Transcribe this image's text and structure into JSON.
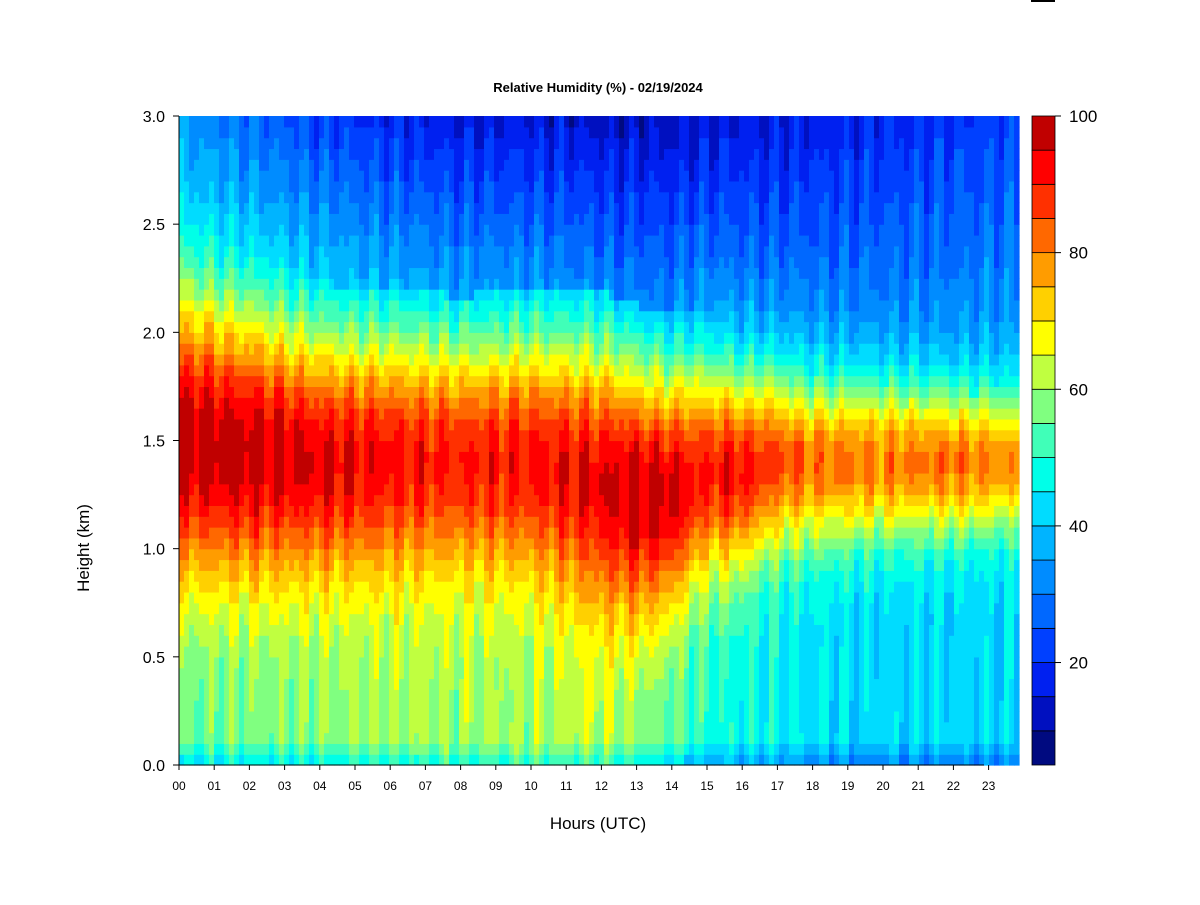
{
  "chart_data": {
    "type": "heatmap",
    "title": "Relative Humidity (%) - 02/19/2024",
    "xlabel": "Hours (UTC)",
    "ylabel": "Height (km)",
    "x_ticks": [
      "00",
      "01",
      "02",
      "03",
      "04",
      "05",
      "06",
      "07",
      "08",
      "09",
      "10",
      "11",
      "12",
      "13",
      "14",
      "15",
      "16",
      "17",
      "18",
      "19",
      "20",
      "21",
      "22",
      "23"
    ],
    "y_ticks": [
      "0.0",
      "0.5",
      "1.0",
      "1.5",
      "2.0",
      "2.5",
      "3.0"
    ],
    "xlim": [
      0,
      24
    ],
    "ylim": [
      0,
      3
    ],
    "colorbar": {
      "range": [
        5,
        100
      ],
      "ticks": [
        "20",
        "40",
        "60",
        "80",
        "100"
      ],
      "levels": [
        5,
        10,
        15,
        20,
        25,
        30,
        35,
        40,
        45,
        50,
        55,
        60,
        65,
        70,
        75,
        80,
        85,
        90,
        95,
        100
      ],
      "colors": [
        "#000a80",
        "#0010c0",
        "#0020f0",
        "#0040ff",
        "#0068ff",
        "#008cff",
        "#00b4ff",
        "#00dcff",
        "#00ffe8",
        "#40ffb8",
        "#80ff80",
        "#c0ff40",
        "#ffff00",
        "#ffd000",
        "#ff9c00",
        "#ff6800",
        "#ff3000",
        "#ff0000",
        "#c00000",
        "#800000"
      ]
    },
    "profiles": [
      {
        "hour": 0,
        "peak_height": 1.5,
        "peak_rh": 99,
        "half_width": 0.62,
        "surface_rh": 42,
        "top_rh": 34
      },
      {
        "hour": 2,
        "peak_height": 1.45,
        "peak_rh": 98,
        "half_width": 0.58,
        "surface_rh": 44,
        "top_rh": 28
      },
      {
        "hour": 4,
        "peak_height": 1.4,
        "peak_rh": 95,
        "half_width": 0.52,
        "surface_rh": 46,
        "top_rh": 22
      },
      {
        "hour": 6,
        "peak_height": 1.4,
        "peak_rh": 92,
        "half_width": 0.5,
        "surface_rh": 48,
        "top_rh": 18
      },
      {
        "hour": 8,
        "peak_height": 1.4,
        "peak_rh": 90,
        "half_width": 0.48,
        "surface_rh": 48,
        "top_rh": 15
      },
      {
        "hour": 10,
        "peak_height": 1.4,
        "peak_rh": 91,
        "half_width": 0.5,
        "surface_rh": 48,
        "top_rh": 15
      },
      {
        "hour": 12,
        "peak_height": 1.3,
        "peak_rh": 94,
        "half_width": 0.56,
        "surface_rh": 50,
        "top_rh": 13
      },
      {
        "hour": 13,
        "peak_height": 1.25,
        "peak_rh": 98,
        "half_width": 0.55,
        "surface_rh": 46,
        "top_rh": 12
      },
      {
        "hour": 14,
        "peak_height": 1.25,
        "peak_rh": 97,
        "half_width": 0.52,
        "surface_rh": 42,
        "top_rh": 12
      },
      {
        "hour": 15,
        "peak_height": 1.35,
        "peak_rh": 90,
        "half_width": 0.46,
        "surface_rh": 38,
        "top_rh": 14
      },
      {
        "hour": 16,
        "peak_height": 1.35,
        "peak_rh": 92,
        "half_width": 0.42,
        "surface_rh": 36,
        "top_rh": 15
      },
      {
        "hour": 17,
        "peak_height": 1.4,
        "peak_rh": 86,
        "half_width": 0.38,
        "surface_rh": 34,
        "top_rh": 15
      },
      {
        "hour": 18,
        "peak_height": 1.4,
        "peak_rh": 82,
        "half_width": 0.36,
        "surface_rh": 32,
        "top_rh": 16
      },
      {
        "hour": 20,
        "peak_height": 1.4,
        "peak_rh": 80,
        "half_width": 0.34,
        "surface_rh": 30,
        "top_rh": 18
      },
      {
        "hour": 22,
        "peak_height": 1.4,
        "peak_rh": 82,
        "half_width": 0.32,
        "surface_rh": 30,
        "top_rh": 20
      },
      {
        "hour": 24,
        "peak_height": 1.4,
        "peak_rh": 78,
        "half_width": 0.3,
        "surface_rh": 30,
        "top_rh": 22
      }
    ]
  }
}
